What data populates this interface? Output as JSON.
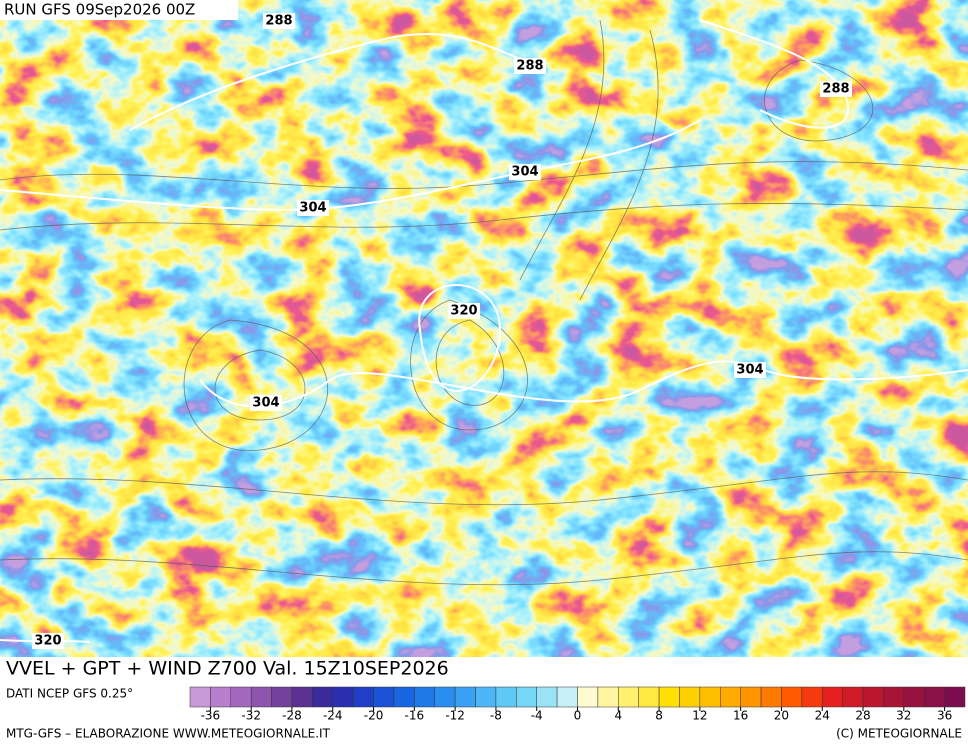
{
  "header": {
    "run": "RUN GFS 09Sep2026 00Z"
  },
  "contour_labels": [
    "288",
    "288",
    "288",
    "304",
    "304",
    "304",
    "304",
    "320",
    "320"
  ],
  "title": "VVEL + GPT + WIND Z700 Val. 15Z10SEP2026",
  "source": "DATI NCEP GFS 0.25°",
  "colorbar": {
    "ticks": [
      -36,
      -32,
      -28,
      -24,
      -20,
      -16,
      -12,
      -8,
      -4,
      0,
      4,
      8,
      12,
      16,
      20,
      24,
      28,
      32,
      36
    ],
    "colors": [
      "#c89ad8",
      "#b77fcd",
      "#a468bf",
      "#8e55ae",
      "#73429a",
      "#5a3190",
      "#3a2a9a",
      "#2a2fb0",
      "#1f3fc8",
      "#1a52d8",
      "#1a66e0",
      "#1f7ae8",
      "#2a8ef0",
      "#3aa2f4",
      "#4cb6f6",
      "#5ec8f6",
      "#76d6f6",
      "#9ae2f6",
      "#c8f0f8",
      "#fffad0",
      "#fff4a0",
      "#fff070",
      "#ffe840",
      "#ffe000",
      "#ffd000",
      "#ffbf00",
      "#ffaa00",
      "#ff9400",
      "#ff7a00",
      "#ff5a00",
      "#f53a10",
      "#e62020",
      "#d01a28",
      "#bc1630",
      "#a81438",
      "#981240",
      "#8a1048",
      "#7c0e50"
    ]
  },
  "footer": {
    "left": "MTG-GFS – ELABORAZIONE WWW.METEOGIORNALE.IT",
    "right": "(C) METEOGIORNALE"
  }
}
